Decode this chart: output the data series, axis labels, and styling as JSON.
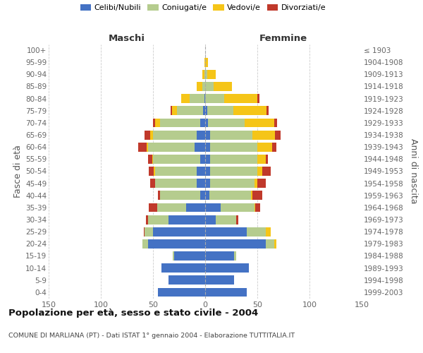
{
  "age_groups": [
    "0-4",
    "5-9",
    "10-14",
    "15-19",
    "20-24",
    "25-29",
    "30-34",
    "35-39",
    "40-44",
    "45-49",
    "50-54",
    "55-59",
    "60-64",
    "65-69",
    "70-74",
    "75-79",
    "80-84",
    "85-89",
    "90-94",
    "95-99",
    "100+"
  ],
  "birth_years": [
    "1999-2003",
    "1994-1998",
    "1989-1993",
    "1984-1988",
    "1979-1983",
    "1974-1978",
    "1969-1973",
    "1964-1968",
    "1959-1963",
    "1954-1958",
    "1949-1953",
    "1944-1948",
    "1939-1943",
    "1934-1938",
    "1929-1933",
    "1924-1928",
    "1919-1923",
    "1914-1918",
    "1909-1913",
    "1904-1908",
    "≤ 1903"
  ],
  "maschi": {
    "celibi": [
      45,
      35,
      42,
      30,
      55,
      50,
      35,
      18,
      5,
      8,
      8,
      5,
      10,
      8,
      5,
      2,
      1,
      0,
      0,
      0,
      0
    ],
    "coniugati": [
      0,
      0,
      0,
      1,
      5,
      8,
      20,
      28,
      38,
      40,
      40,
      45,
      45,
      42,
      38,
      25,
      14,
      3,
      1,
      0,
      0
    ],
    "vedovi": [
      0,
      0,
      0,
      0,
      0,
      0,
      0,
      0,
      0,
      0,
      1,
      1,
      1,
      3,
      5,
      5,
      8,
      5,
      2,
      1,
      0
    ],
    "divorziati": [
      0,
      0,
      0,
      0,
      0,
      1,
      2,
      8,
      2,
      5,
      5,
      4,
      8,
      5,
      2,
      1,
      0,
      0,
      0,
      0,
      0
    ]
  },
  "femmine": {
    "nubili": [
      40,
      28,
      42,
      28,
      58,
      40,
      10,
      15,
      4,
      5,
      5,
      5,
      5,
      5,
      3,
      2,
      0,
      0,
      0,
      0,
      0
    ],
    "coniugate": [
      0,
      0,
      0,
      2,
      8,
      18,
      20,
      32,
      40,
      42,
      45,
      45,
      45,
      40,
      35,
      25,
      18,
      8,
      2,
      0,
      0
    ],
    "vedove": [
      0,
      0,
      0,
      0,
      2,
      5,
      0,
      1,
      1,
      3,
      5,
      8,
      14,
      22,
      28,
      32,
      32,
      18,
      8,
      3,
      0
    ],
    "divorziate": [
      0,
      0,
      0,
      0,
      0,
      0,
      2,
      5,
      10,
      8,
      8,
      2,
      4,
      5,
      3,
      2,
      2,
      0,
      0,
      0,
      0
    ]
  },
  "colors": {
    "celibi_nubili": "#4472C4",
    "coniugati": "#B5CC8E",
    "vedovi": "#F5C518",
    "divorziati": "#C0392B"
  },
  "xlim": 150,
  "title": "Popolazione per età, sesso e stato civile - 2004",
  "subtitle": "COMUNE DI MARLIANA (PT) - Dati ISTAT 1° gennaio 2004 - Elaborazione TUTTITALIA.IT",
  "ylabel": "Fasce di età",
  "ylabel_right": "Anni di nascita",
  "label_maschi": "Maschi",
  "label_femmine": "Femmine",
  "bg_color": "#ffffff",
  "grid_color": "#cccccc",
  "legend_labels": [
    "Celibi/Nubili",
    "Coniugati/e",
    "Vedovi/e",
    "Divorziati/e"
  ]
}
